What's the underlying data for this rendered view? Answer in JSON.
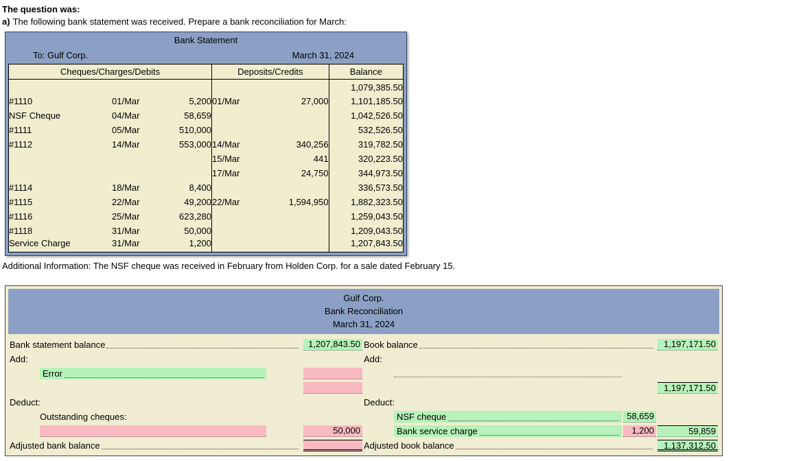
{
  "question": {
    "heading": "The question was:",
    "part_label": "a)",
    "prompt": "The following bank statement was received. Prepare a bank reconciliation for March:",
    "additional_info": "Additional Information: The NSF cheque was received in February from Holden Corp. for a sale dated February 15."
  },
  "bank_statement": {
    "title": "Bank Statement",
    "to": "To: Gulf Corp.",
    "date": "March 31, 2024",
    "columns": [
      "Cheques/Charges/Debits",
      "Deposits/Credits",
      "Balance"
    ],
    "rows": [
      {
        "desc": "",
        "chq_date": "",
        "chq_amt": "",
        "dep_date": "",
        "dep_amt": "",
        "balance": "1,079,385.50"
      },
      {
        "desc": "#1110",
        "chq_date": "01/Mar",
        "chq_amt": "5,200",
        "dep_date": "01/Mar",
        "dep_amt": "27,000",
        "balance": "1,101,185.50"
      },
      {
        "desc": "NSF Cheque",
        "chq_date": "04/Mar",
        "chq_amt": "58,659",
        "dep_date": "",
        "dep_amt": "",
        "balance": "1,042,526.50"
      },
      {
        "desc": "#1111",
        "chq_date": "05/Mar",
        "chq_amt": "510,000",
        "dep_date": "",
        "dep_amt": "",
        "balance": "532,526.50"
      },
      {
        "desc": "#1112",
        "chq_date": "14/Mar",
        "chq_amt": "553,000",
        "dep_date": "14/Mar",
        "dep_amt": "340,256",
        "balance": "319,782.50"
      },
      {
        "desc": "",
        "chq_date": "",
        "chq_amt": "",
        "dep_date": "15/Mar",
        "dep_amt": "441",
        "balance": "320,223.50"
      },
      {
        "desc": "",
        "chq_date": "",
        "chq_amt": "",
        "dep_date": "17/Mar",
        "dep_amt": "24,750",
        "balance": "344,973.50"
      },
      {
        "desc": "#1114",
        "chq_date": "18/Mar",
        "chq_amt": "8,400",
        "dep_date": "",
        "dep_amt": "",
        "balance": "336,573.50"
      },
      {
        "desc": "#1115",
        "chq_date": "22/Mar",
        "chq_amt": "49,200",
        "dep_date": "22/Mar",
        "dep_amt": "1,594,950",
        "balance": "1,882,323.50"
      },
      {
        "desc": "#1116",
        "chq_date": "25/Mar",
        "chq_amt": "623,280",
        "dep_date": "",
        "dep_amt": "",
        "balance": "1,259,043.50"
      },
      {
        "desc": "#1118",
        "chq_date": "31/Mar",
        "chq_amt": "50,000",
        "dep_date": "",
        "dep_amt": "",
        "balance": "1,209,043.50"
      },
      {
        "desc": "Service Charge",
        "chq_date": "31/Mar",
        "chq_amt": "1,200",
        "dep_date": "",
        "dep_amt": "",
        "balance": "1,207,843.50"
      }
    ]
  },
  "recon": {
    "company": "Gulf Corp.",
    "title": "Bank Reconciliation",
    "date": "March 31, 2024",
    "left": {
      "balance_label": "Bank statement balance",
      "balance_value": "1,207,843.50",
      "add_label": "Add:",
      "error_label": "Error",
      "error_amount": "",
      "add_amount2": "",
      "deduct_label": "Deduct:",
      "outstanding_label": "Outstanding cheques:",
      "outstanding_item": "",
      "outstanding_total": "50,000",
      "adjusted_label": "Adjusted bank balance",
      "adjusted_value": ""
    },
    "right": {
      "balance_label": "Book balance",
      "balance_value": "1,197,171.50",
      "add_label": "Add:",
      "add_item": "",
      "subtotal_value": "1,197,171.50",
      "deduct_label": "Deduct:",
      "nsf_label": "NSF cheque",
      "nsf_value": "58,659",
      "service_label": "Bank service charge",
      "service_value": "1,200",
      "deduct_total": "59,859",
      "adjusted_label": "Adjusted book balance",
      "adjusted_value": "1,137,312.50"
    }
  },
  "colors": {
    "header_blue": "#8ba0c4",
    "panel_bg": "#f0edd2",
    "statement_bg": "#f0eecf",
    "correct_green": "#b6f2b9",
    "answer_pink": "#f9b9c1"
  }
}
